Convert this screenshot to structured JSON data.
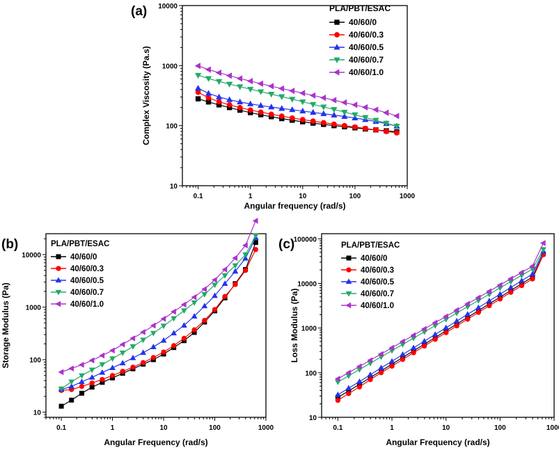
{
  "chart_data": [
    {
      "panel": "(a)",
      "type": "line",
      "xscale": "log",
      "yscale": "log",
      "xlabel": "Angular frequency (rad/s)",
      "ylabel": "Complex Viscosity (Pa.s)",
      "xlim": [
        0.05,
        1000
      ],
      "ylim": [
        10,
        10000
      ],
      "xticks": [
        0.1,
        1,
        10,
        100,
        1000
      ],
      "xtick_labels": [
        "0.1",
        "1",
        "10",
        "100",
        "1000"
      ],
      "yticks": [
        10,
        100,
        1000,
        10000
      ],
      "ytick_labels": [
        "10",
        "100",
        "1000",
        "10000"
      ],
      "legend_title": "PLA/PBT/ESAC",
      "legend_position": "top-right",
      "x": [
        0.1,
        0.158,
        0.251,
        0.398,
        0.631,
        1,
        1.58,
        2.51,
        3.98,
        6.31,
        10,
        15.8,
        25.1,
        39.8,
        63.1,
        100,
        158,
        251,
        398,
        631
      ],
      "series": [
        {
          "name": "40/60/0",
          "color": "#000000",
          "marker": "square",
          "values": [
            280,
            248,
            222,
            200,
            181,
            165,
            152,
            141,
            131,
            123,
            116,
            110,
            105,
            100,
            96,
            92,
            88,
            85,
            82,
            79
          ]
        },
        {
          "name": "40/60/0.3",
          "color": "#ff0000",
          "marker": "circle",
          "values": [
            360,
            290,
            250,
            222,
            200,
            182,
            168,
            155,
            144,
            134,
            126,
            119,
            112,
            106,
            100,
            95,
            90,
            85,
            80,
            76
          ]
        },
        {
          "name": "40/60/0.5",
          "color": "#2233ee",
          "marker": "triangle-up",
          "values": [
            420,
            345,
            300,
            270,
            248,
            230,
            216,
            204,
            193,
            184,
            175,
            166,
            158,
            150,
            142,
            134,
            126,
            117,
            108,
            98
          ]
        },
        {
          "name": "40/60/0.7",
          "color": "#22aa66",
          "marker": "triangle-down",
          "values": [
            690,
            610,
            545,
            492,
            446,
            405,
            368,
            335,
            304,
            276,
            250,
            226,
            205,
            186,
            168,
            152,
            137,
            123,
            110,
            98
          ]
        },
        {
          "name": "40/60/1.0",
          "color": "#aa33cc",
          "marker": "triangle-left",
          "values": [
            990,
            860,
            760,
            680,
            610,
            552,
            500,
            455,
            415,
            380,
            348,
            318,
            291,
            266,
            243,
            222,
            202,
            184,
            164,
            145
          ]
        }
      ]
    },
    {
      "panel": "(b)",
      "type": "line",
      "xscale": "log",
      "yscale": "log",
      "xlabel": "Angular Frequency (rad/s)",
      "ylabel": "Storage Modulus (Pa)",
      "xlim": [
        0.05,
        1000
      ],
      "ylim": [
        8,
        25000
      ],
      "xticks": [
        0.1,
        1,
        10,
        100,
        1000
      ],
      "xtick_labels": [
        "0.1",
        "1",
        "10",
        "100",
        "1000"
      ],
      "yticks": [
        10,
        100,
        1000,
        10000
      ],
      "ytick_labels": [
        "10",
        "100",
        "1000",
        "10000"
      ],
      "legend_title": "PLA/PBT/ESAC",
      "legend_position": "top-left",
      "x": [
        0.1,
        0.158,
        0.251,
        0.398,
        0.631,
        1,
        1.58,
        2.51,
        3.98,
        6.31,
        10,
        15.8,
        25.1,
        39.8,
        63.1,
        100,
        158,
        251,
        398,
        631
      ],
      "series": [
        {
          "name": "40/60/0",
          "color": "#000000",
          "marker": "square",
          "values": [
            13,
            17,
            23,
            30,
            37,
            45,
            55,
            67,
            82,
            100,
            128,
            170,
            230,
            330,
            520,
            850,
            1500,
            2800,
            5200,
            17000
          ]
        },
        {
          "name": "40/60/0.3",
          "color": "#ff0000",
          "marker": "circle",
          "values": [
            26,
            27,
            31,
            36,
            42,
            50,
            60,
            72,
            88,
            110,
            140,
            185,
            255,
            370,
            560,
            900,
            1600,
            2700,
            5000,
            12500
          ]
        },
        {
          "name": "40/60/0.5",
          "color": "#2233ee",
          "marker": "triangle-up",
          "values": [
            27,
            31,
            38,
            46,
            57,
            70,
            86,
            108,
            136,
            175,
            232,
            320,
            450,
            670,
            1050,
            1650,
            2800,
            4800,
            8500,
            21000
          ]
        },
        {
          "name": "40/60/0.7",
          "color": "#22aa66",
          "marker": "triangle-down",
          "values": [
            28,
            38,
            50,
            64,
            81,
            105,
            135,
            178,
            238,
            320,
            440,
            610,
            860,
            1220,
            1750,
            2650,
            4000,
            6200,
            10000,
            23000
          ]
        },
        {
          "name": "40/60/1.0",
          "color": "#aa33cc",
          "marker": "triangle-left",
          "values": [
            58,
            68,
            80,
            97,
            120,
            150,
            195,
            255,
            335,
            445,
            600,
            820,
            1120,
            1550,
            2200,
            3300,
            5200,
            8600,
            15000,
            44000
          ]
        }
      ]
    },
    {
      "panel": "(c)",
      "type": "line",
      "xscale": "log",
      "yscale": "log",
      "xlabel": "Angular Frequency (rad/s)",
      "ylabel": "Loss Modulus (Pa)",
      "xlim": [
        0.05,
        1000
      ],
      "ylim": [
        10,
        130000
      ],
      "xticks": [
        0.1,
        1,
        10,
        100,
        1000
      ],
      "xtick_labels": [
        "0.1",
        "1",
        "10",
        "100",
        "1000"
      ],
      "yticks": [
        10,
        100,
        1000,
        10000,
        100000
      ],
      "ytick_labels": [
        "10",
        "100",
        "1000",
        "10000",
        "100000"
      ],
      "legend_title": "PLA/PBT/ESAC",
      "legend_position": "top-left",
      "x": [
        0.1,
        0.158,
        0.251,
        0.398,
        0.631,
        1,
        1.58,
        2.51,
        3.98,
        6.31,
        10,
        15.8,
        25.1,
        39.8,
        63.1,
        100,
        158,
        251,
        398,
        631
      ],
      "series": [
        {
          "name": "40/60/0",
          "color": "#000000",
          "marker": "square",
          "values": [
            28,
            39,
            55,
            78,
            110,
            155,
            220,
            310,
            435,
            615,
            870,
            1230,
            1740,
            2460,
            3480,
            4920,
            6960,
            9840,
            13900,
            46000
          ]
        },
        {
          "name": "40/60/0.3",
          "color": "#ff0000",
          "marker": "circle",
          "values": [
            24,
            34,
            48,
            70,
            100,
            140,
            198,
            280,
            395,
            560,
            790,
            1120,
            1580,
            2240,
            3160,
            4470,
            6320,
            8930,
            12600,
            44000
          ]
        },
        {
          "name": "40/60/0.5",
          "color": "#2233ee",
          "marker": "triangle-up",
          "values": [
            32,
            45,
            63,
            90,
            128,
            180,
            255,
            360,
            508,
            718,
            1015,
            1435,
            2030,
            2870,
            4060,
            5740,
            8120,
            11500,
            16200,
            52000
          ]
        },
        {
          "name": "40/60/0.7",
          "color": "#22aa66",
          "marker": "triangle-down",
          "values": [
            62,
            85,
            118,
            163,
            226,
            312,
            430,
            595,
            822,
            1135,
            1570,
            2170,
            3000,
            4150,
            5740,
            7940,
            11000,
            15200,
            21000,
            58000
          ]
        },
        {
          "name": "40/60/1.0",
          "color": "#aa33cc",
          "marker": "triangle-left",
          "values": [
            73,
            100,
            138,
            190,
            262,
            362,
            500,
            690,
            955,
            1320,
            1820,
            2520,
            3480,
            4810,
            6650,
            9190,
            12700,
            17600,
            24300,
            80000
          ]
        }
      ]
    }
  ]
}
